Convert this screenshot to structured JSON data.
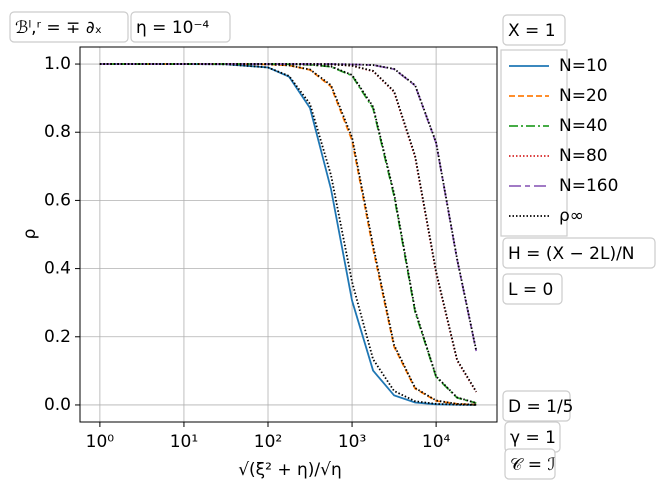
{
  "chart_data": {
    "type": "line",
    "x_label": "√(ξ² + η)/√η",
    "y_label": "ρ",
    "log_x": true,
    "grid": true,
    "xlim": [
      0.58,
      53000
    ],
    "ylim": [
      -0.05,
      1.05
    ],
    "xticks": [
      {
        "value": 1,
        "label": "10⁰"
      },
      {
        "value": 10,
        "label": "10¹"
      },
      {
        "value": 100,
        "label": "10²"
      },
      {
        "value": 1000,
        "label": "10³"
      },
      {
        "value": 10000,
        "label": "10⁴"
      }
    ],
    "yticks": [
      {
        "value": 0,
        "label": "0.0"
      },
      0.2,
      0.4,
      0.6,
      0.8,
      {
        "value": 1,
        "label": "1.0"
      }
    ],
    "x": [
      1,
      3.16,
      10,
      31.6,
      100,
      178,
      316,
      562,
      1000,
      1778,
      3162,
      5623,
      10000,
      17783,
      30000
    ],
    "series": [
      {
        "name": "N=10",
        "color": "#1f77b4",
        "style": "solid",
        "values": [
          1,
          1,
          1,
          0.9994,
          0.99,
          0.963,
          0.871,
          0.633,
          0.306,
          0.101,
          0.028,
          0.0073,
          0.0019,
          0.0005,
          0.0001
        ]
      },
      {
        "name": "N=20",
        "color": "#ff7f0e",
        "style": "dashed",
        "values": [
          1,
          1,
          1,
          1,
          0.999,
          0.996,
          0.983,
          0.934,
          0.776,
          0.458,
          0.171,
          0.048,
          0.012,
          0.003,
          0.0008
        ]
      },
      {
        "name": "N=40",
        "color": "#2ca02c",
        "style": "dashdot",
        "values": [
          1,
          1,
          1,
          1,
          1,
          0.9995,
          0.998,
          0.992,
          0.966,
          0.87,
          0.613,
          0.273,
          0.082,
          0.021,
          0.0056
        ]
      },
      {
        "name": "N=80",
        "color": "#d62728",
        "style": "dotted",
        "values": [
          1,
          1,
          1,
          1,
          1,
          1,
          1,
          0.999,
          0.995,
          0.979,
          0.918,
          0.727,
          0.387,
          0.13,
          0.038
        ]
      },
      {
        "name": "N=160",
        "color": "#9467bd",
        "style": "longdash",
        "values": [
          1,
          1,
          1,
          1,
          1,
          1,
          1,
          1,
          0.999,
          0.997,
          0.985,
          0.937,
          0.768,
          0.426,
          0.158
        ]
      },
      {
        "name": "ρ∞",
        "color": "#000000",
        "style": "dotted",
        "values": [
          [
            1,
            1,
            1,
            0.9992,
            0.99,
            0.965,
            0.883,
            0.674,
            0.361,
            0.134,
            0.041,
            0.011,
            0.003,
            0.0009,
            0.0003
          ],
          [
            1,
            1,
            1,
            1,
            0.999,
            0.996,
            0.984,
            0.938,
            0.785,
            0.468,
            0.176,
            0.05,
            0.013,
            0.003,
            0.0008
          ],
          [
            1,
            1,
            1,
            1,
            1,
            0.9995,
            0.998,
            0.993,
            0.968,
            0.875,
            0.62,
            0.278,
            0.084,
            0.022,
            0.0058
          ],
          [
            1,
            1,
            1,
            1,
            1,
            1,
            1,
            0.999,
            0.995,
            0.98,
            0.92,
            0.731,
            0.391,
            0.132,
            0.039
          ],
          [
            1,
            1,
            1,
            1,
            1,
            1,
            1,
            1,
            0.999,
            0.997,
            0.986,
            0.938,
            0.77,
            0.428,
            0.16
          ]
        ]
      }
    ],
    "annotations": [
      "ℬˡ,ʳ = ∓ ∂ₓ",
      "η = 10⁻⁴",
      "X = 1",
      "H = (X − 2L)/N",
      "L = 0",
      "D = 1/5",
      "γ = 1",
      "𝒞 = ℐ"
    ]
  }
}
